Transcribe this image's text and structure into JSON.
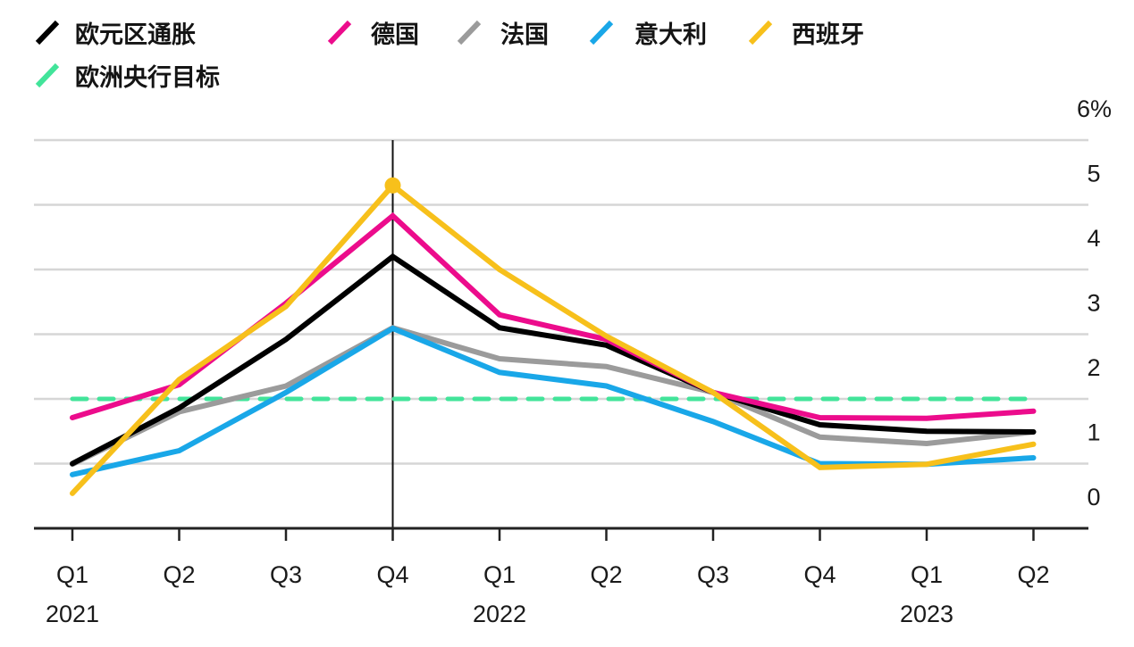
{
  "chart_data": {
    "type": "line",
    "title": "",
    "xlabel": "",
    "ylabel": "",
    "y_unit": "%",
    "ylim": [
      0,
      6
    ],
    "y_ticks": [
      0,
      1,
      2,
      3,
      4,
      5,
      6
    ],
    "y_tick_labels": [
      "0",
      "1",
      "2",
      "3",
      "4",
      "5",
      "6%"
    ],
    "y_axis_side": "right",
    "grid": true,
    "legend_position": "top-left",
    "categories": [
      "Q1",
      "Q2",
      "Q3",
      "Q4",
      "Q1",
      "Q2",
      "Q3",
      "Q4",
      "Q1",
      "Q2"
    ],
    "year_labels": [
      {
        "category_index": 0,
        "label": "2021"
      },
      {
        "category_index": 4,
        "label": "2022"
      },
      {
        "category_index": 8,
        "label": "2023"
      }
    ],
    "vertical_marker": {
      "category_index": 3
    },
    "series": [
      {
        "name": "欧元区通胀",
        "color": "#000000",
        "dashed": false,
        "values": [
          1.0,
          1.86,
          2.92,
          4.2,
          3.1,
          2.83,
          2.1,
          1.6,
          1.5,
          1.49
        ]
      },
      {
        "name": "德国",
        "color": "#ec0c8c",
        "dashed": false,
        "values": [
          1.71,
          2.22,
          3.48,
          4.83,
          3.3,
          2.92,
          2.1,
          1.71,
          1.7,
          1.81
        ]
      },
      {
        "name": "法国",
        "color": "#9b9b9b",
        "dashed": false,
        "values": [
          0.99,
          1.8,
          2.2,
          3.1,
          2.62,
          2.5,
          2.1,
          1.41,
          1.31,
          1.49
        ]
      },
      {
        "name": "意大利",
        "color": "#19a7e8",
        "dashed": false,
        "values": [
          0.83,
          1.2,
          2.1,
          3.09,
          2.41,
          2.2,
          1.65,
          1.0,
          0.99,
          1.09
        ]
      },
      {
        "name": "西班牙",
        "color": "#f7c01b",
        "dashed": false,
        "values": [
          0.54,
          2.3,
          3.43,
          5.3,
          4.0,
          2.97,
          2.1,
          0.94,
          0.99,
          1.3
        ],
        "highlight_point_index": 3
      },
      {
        "name": "欧洲央行目标",
        "color": "#42e49a",
        "dashed": true,
        "values": [
          2.0,
          2.0,
          2.0,
          2.0,
          2.0,
          2.0,
          2.0,
          2.0,
          2.0,
          2.0
        ]
      }
    ]
  },
  "legend": {
    "items": [
      {
        "label": "欧元区通胀",
        "color": "#000000"
      },
      {
        "label": "德国",
        "color": "#ec0c8c"
      },
      {
        "label": "法国",
        "color": "#9b9b9b"
      },
      {
        "label": "意大利",
        "color": "#19a7e8"
      },
      {
        "label": "西班牙",
        "color": "#f7c01b"
      },
      {
        "label": "欧洲央行目标",
        "color": "#42e49a"
      }
    ]
  }
}
